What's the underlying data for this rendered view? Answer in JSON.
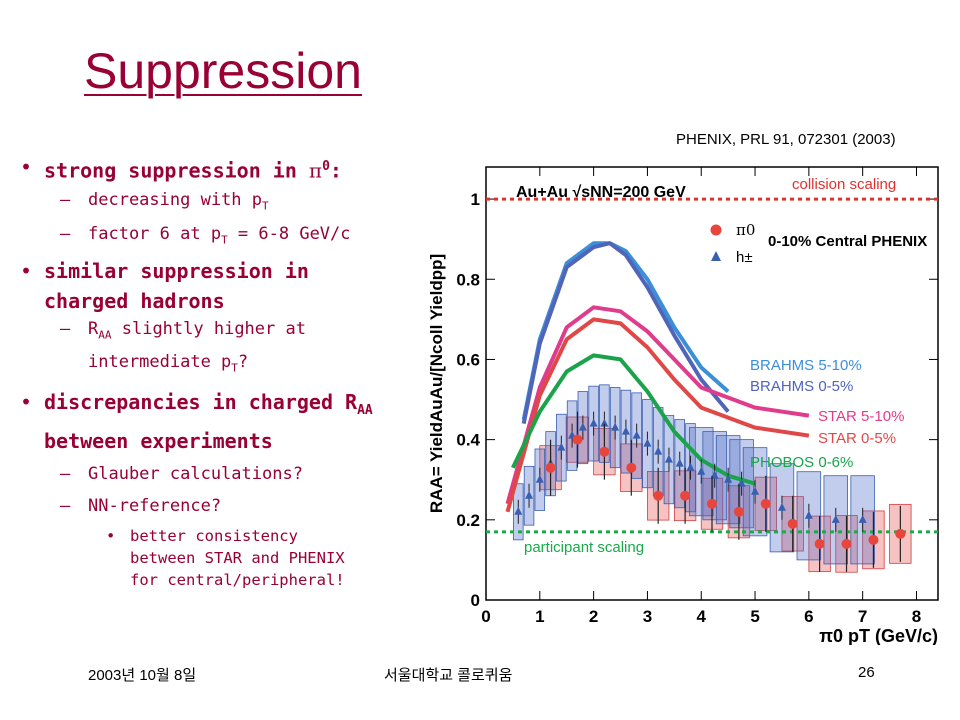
{
  "slide": {
    "title": "Suppression",
    "reference": "PHENIX, PRL 91, 072301 (2003)",
    "footer_date": "2003년 10월 8일",
    "footer_org": "서울대학교 콜로퀴움",
    "page_number": "26"
  },
  "bullets": {
    "b1_pre": "strong suppression in ",
    "b1_pi": "π",
    "b1_sup": "0",
    "b1_post": ":",
    "b1a_pre": "decreasing with p",
    "b1a_sub": "T",
    "b1b_pre": "factor 6 at p",
    "b1b_sub": "T",
    "b1b_post": " = 6-8 GeV/c",
    "b2_line1": "similar suppression in",
    "b2_line2": "charged hadrons",
    "b2a_pre": "R",
    "b2a_sub": "AA",
    "b2a_post": " slightly higher at",
    "b2a2_pre": "intermediate p",
    "b2a2_sub": "T",
    "b2a2_post": "?",
    "b3_pre": "discrepancies in charged R",
    "b3_sub": "AA",
    "b3_line2": "between experiments",
    "b3a": "Glauber calculations?",
    "b3b": "NN-reference?",
    "b3b1_l1": "better consistency",
    "b3b1_l2": "between STAR and PHENIX",
    "b3b1_l3": "for central/peripheral!",
    "dash": "–"
  },
  "chart_data": {
    "type": "scatter",
    "title": "Au+Au √sNN=200 GeV",
    "subtitle": "0-10% Central PHENIX",
    "xlabel": "π0 pT (GeV/c)",
    "ylabel": "RAA= YieldAuAu/[Ncoll Yieldpp]",
    "xlim": [
      0,
      8.4
    ],
    "ylim": [
      0,
      1.08
    ],
    "x_ticks": [
      "0",
      "1",
      "2",
      "3",
      "4",
      "5",
      "6",
      "7",
      "8"
    ],
    "y_ticks": [
      "0",
      "0.2",
      "0.4",
      "0.6",
      "0.8",
      "1"
    ],
    "legend": [
      {
        "marker": "circle",
        "color": "#e8453c",
        "label": "π0"
      },
      {
        "marker": "triangle",
        "color": "#3a5fb0",
        "label": "h±"
      }
    ],
    "reference_lines": [
      {
        "name": "collision scaling",
        "y": 1.0,
        "color": "#e0302e"
      },
      {
        "name": "participant scaling",
        "y": 0.17,
        "color": "#1aaa4a"
      }
    ],
    "series": [
      {
        "name": "π0",
        "color": "#e8453c",
        "x": [
          1.2,
          1.7,
          2.2,
          2.7,
          3.2,
          3.7,
          4.2,
          4.7,
          5.2,
          5.7,
          6.2,
          6.7,
          7.2,
          7.7
        ],
        "y": [
          0.33,
          0.4,
          0.37,
          0.33,
          0.26,
          0.26,
          0.24,
          0.22,
          0.24,
          0.19,
          0.14,
          0.14,
          0.15,
          0.165
        ]
      },
      {
        "name": "h±",
        "color": "#3a5fb0",
        "x": [
          0.6,
          0.8,
          1.0,
          1.2,
          1.4,
          1.6,
          1.8,
          2.0,
          2.2,
          2.4,
          2.6,
          2.8,
          3.0,
          3.2,
          3.4,
          3.6,
          3.8,
          4.0,
          4.25,
          4.5,
          4.75,
          5.0,
          5.5,
          6.0,
          6.5,
          7.0
        ],
        "y": [
          0.22,
          0.26,
          0.3,
          0.34,
          0.38,
          0.41,
          0.43,
          0.44,
          0.44,
          0.43,
          0.42,
          0.41,
          0.39,
          0.37,
          0.35,
          0.34,
          0.33,
          0.32,
          0.31,
          0.3,
          0.29,
          0.27,
          0.23,
          0.21,
          0.2,
          0.2
        ]
      }
    ],
    "curves": [
      {
        "name": "BRAHMS 5-10%",
        "color": "#3a8fd8",
        "x": [
          0.7,
          1.0,
          1.5,
          2.0,
          2.3,
          2.6,
          3.0,
          3.5,
          4.0,
          4.5
        ],
        "y": [
          0.45,
          0.65,
          0.84,
          0.89,
          0.89,
          0.87,
          0.8,
          0.68,
          0.58,
          0.52
        ]
      },
      {
        "name": "BRAHMS 0-5%",
        "color": "#5064b8",
        "x": [
          0.7,
          1.0,
          1.5,
          2.0,
          2.3,
          2.6,
          3.0,
          3.5,
          4.0,
          4.5
        ],
        "y": [
          0.44,
          0.64,
          0.83,
          0.88,
          0.89,
          0.86,
          0.78,
          0.66,
          0.55,
          0.47
        ]
      },
      {
        "name": "STAR 5-10%",
        "color": "#e03c8c",
        "x": [
          0.4,
          1.0,
          1.5,
          2.0,
          2.5,
          3.0,
          3.5,
          4.0,
          5.0,
          6.0
        ],
        "y": [
          0.24,
          0.53,
          0.68,
          0.73,
          0.72,
          0.67,
          0.6,
          0.53,
          0.48,
          0.46
        ]
      },
      {
        "name": "STAR 0-5%",
        "color": "#e04848",
        "x": [
          0.4,
          1.0,
          1.5,
          2.0,
          2.5,
          3.0,
          3.5,
          4.0,
          5.0,
          6.0
        ],
        "y": [
          0.22,
          0.51,
          0.65,
          0.7,
          0.69,
          0.63,
          0.55,
          0.48,
          0.43,
          0.41
        ]
      },
      {
        "name": "PHOBOS 0-6%",
        "color": "#1aa34a",
        "x": [
          0.5,
          1.0,
          1.5,
          2.0,
          2.5,
          3.0,
          3.5,
          4.0,
          4.5,
          5.0
        ],
        "y": [
          0.33,
          0.47,
          0.57,
          0.61,
          0.6,
          0.52,
          0.42,
          0.35,
          0.31,
          0.29
        ]
      }
    ]
  }
}
